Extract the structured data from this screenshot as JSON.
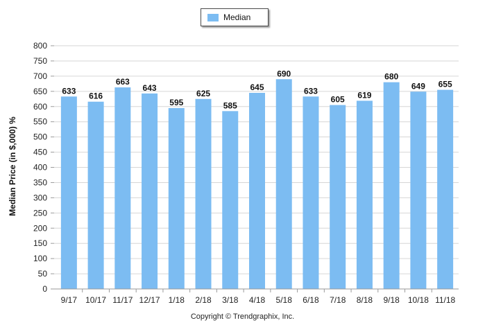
{
  "legend": {
    "label": "Median",
    "swatch_color": "#7cbcf2"
  },
  "footer": {
    "copyright": "Copyright © Trendgraphix, Inc."
  },
  "chart_data": {
    "type": "bar",
    "title": "",
    "xlabel": "",
    "ylabel": "Median Price (in $,000) %",
    "ylim": [
      0,
      800
    ],
    "ytick_step": 50,
    "grid": true,
    "legend_position": "top-center",
    "bar_color": "#7cbcf2",
    "categories": [
      "9/17",
      "10/17",
      "11/17",
      "12/17",
      "1/18",
      "2/18",
      "3/18",
      "4/18",
      "5/18",
      "6/18",
      "7/18",
      "8/18",
      "9/18",
      "10/18",
      "11/18"
    ],
    "series": [
      {
        "name": "Median",
        "values": [
          633,
          616,
          663,
          643,
          595,
          625,
          585,
          645,
          690,
          633,
          605,
          619,
          680,
          649,
          655
        ]
      }
    ]
  }
}
